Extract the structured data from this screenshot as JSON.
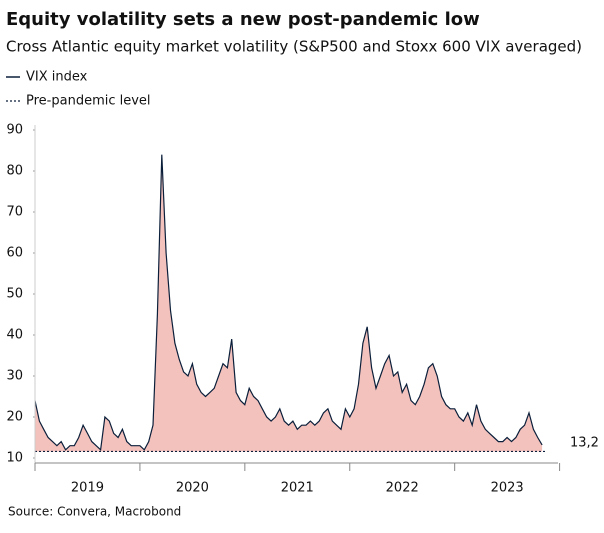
{
  "chart_data": {
    "type": "area-line",
    "title": "Equity volatility sets a new post-pandemic low",
    "subtitle": "Cross Atlantic equity market volatility (S&P500 and Stoxx 600 VIX averaged)",
    "source": "Source: Convera, Macrobond",
    "series": [
      {
        "name": "VIX index",
        "color": "#0b1f3a",
        "fill": "#f4c2bd",
        "values": [
          24,
          19,
          17,
          15,
          14,
          13,
          14,
          12,
          13,
          13,
          15,
          18,
          16,
          14,
          13,
          12,
          20,
          19,
          16,
          15,
          17,
          14,
          13,
          13,
          13,
          12,
          14,
          18,
          45,
          84,
          60,
          46,
          38,
          34,
          31,
          30,
          33,
          28,
          26,
          25,
          26,
          27,
          30,
          33,
          32,
          39,
          26,
          24,
          23,
          27,
          25,
          24,
          22,
          20,
          19,
          20,
          22,
          19,
          18,
          19,
          17,
          18,
          18,
          19,
          18,
          19,
          21,
          22,
          19,
          18,
          17,
          22,
          20,
          22,
          28,
          38,
          42,
          32,
          27,
          30,
          33,
          35,
          30,
          31,
          26,
          28,
          24,
          23,
          25,
          28,
          32,
          33,
          30,
          25,
          23,
          22,
          22,
          20,
          19,
          21,
          18,
          23,
          19,
          17,
          16,
          15,
          14,
          14,
          15,
          14,
          15,
          17,
          18,
          21,
          17,
          15,
          13.2
        ]
      }
    ],
    "reference_line": {
      "name": "Pre-pandemic level",
      "value": 11.6,
      "color": "#0b1f3a"
    },
    "last_value_label": "13,2",
    "x_start": 2019,
    "x_step": 0.041667,
    "xlim": [
      2019,
      2023.88
    ],
    "xticks": [
      {
        "value": 2019.5,
        "label": "2019"
      },
      {
        "value": 2020.5,
        "label": "2020"
      },
      {
        "value": 2021.5,
        "label": "2021"
      },
      {
        "value": 2022.5,
        "label": "2022"
      },
      {
        "value": 2023.5,
        "label": "2023"
      }
    ],
    "ylim": [
      10,
      90
    ],
    "yticks": [
      10,
      20,
      30,
      40,
      50,
      60,
      70,
      80,
      90
    ]
  }
}
